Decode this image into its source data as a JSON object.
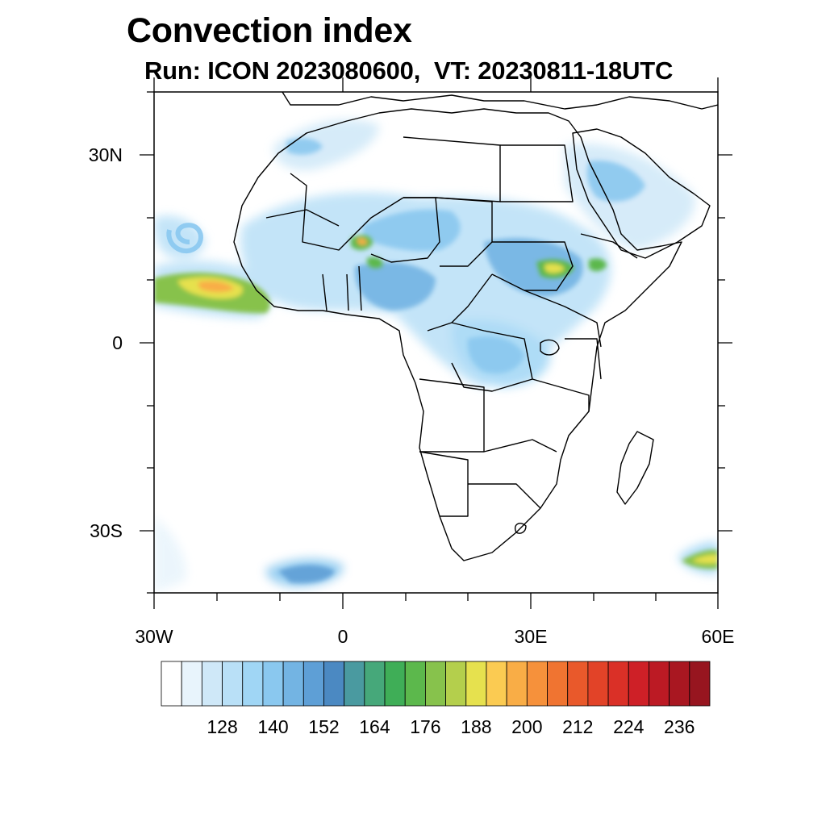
{
  "title": "Convection index",
  "subtitle": "Run: ICON 2023080600,  VT: 20230811-18UTC",
  "map": {
    "lon_range": [
      -30,
      60
    ],
    "lat_range": [
      -40,
      40
    ],
    "lat_labels": [
      "30N",
      "0",
      "30S"
    ],
    "lon_labels": [
      "30W",
      "0",
      "30E",
      "60E"
    ]
  },
  "colorbar": {
    "tick_labels": [
      "128",
      "140",
      "152",
      "164",
      "176",
      "188",
      "200",
      "212",
      "224",
      "236"
    ],
    "colors": [
      "#ffffff",
      "#e8f4fc",
      "#cfe8f8",
      "#b9e0f7",
      "#a0d6f5",
      "#8ac8ef",
      "#73b4e3",
      "#5e9fd6",
      "#4b89c2",
      "#4a9aa0",
      "#46a87a",
      "#3fae57",
      "#5cb84c",
      "#87c24c",
      "#b4cf4c",
      "#e6e14e",
      "#fbcb52",
      "#f9ad46",
      "#f6913b",
      "#f07431",
      "#e9592b",
      "#e24328",
      "#da3027",
      "#ce2027",
      "#bc1a24",
      "#a91721",
      "#97151f"
    ]
  }
}
